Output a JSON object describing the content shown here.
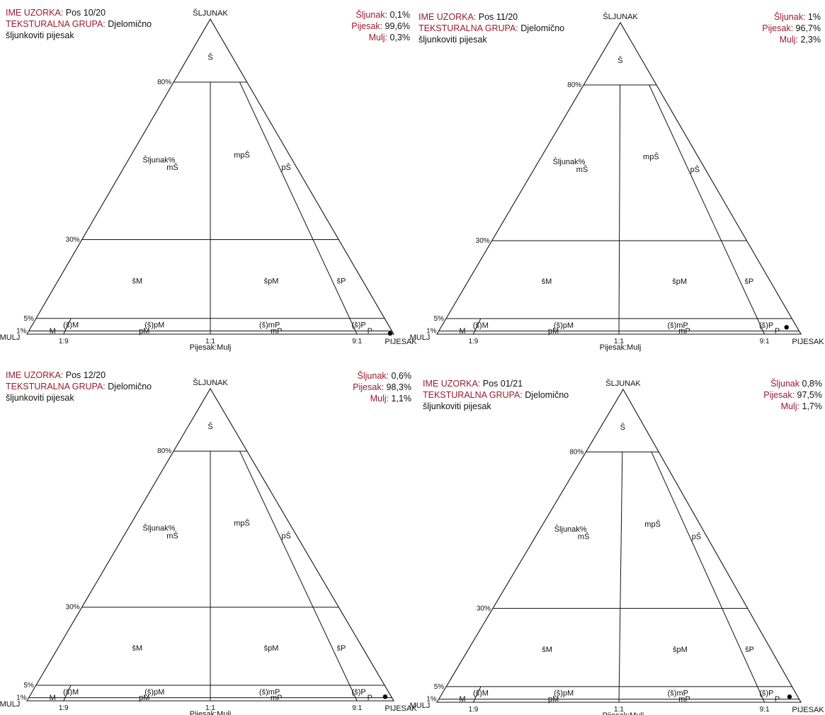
{
  "labels": {
    "top_vertex": "ŠLJUNAK",
    "left_vertex": "MULJ",
    "right_vertex": "PIJESAK",
    "axis_left": "Šljunak%",
    "axis_bottom": "Pijesak:Mulj",
    "ratio_ticks": [
      "1:9",
      "1:1",
      "9:1"
    ],
    "percent_ticks": [
      "80%",
      "30%",
      "5%",
      "1%"
    ],
    "fields": {
      "S": "Š",
      "mS": "mŠ",
      "mpS": "mpŠ",
      "pS": "pŠ",
      "sM": "šM",
      "spM": "špM",
      "sP": "šP",
      "s_M": "(š)M",
      "s_pM": "(š)pM",
      "s_mP": "(š)mP",
      "s_P": "(š)P",
      "M": "M",
      "pM": "pM",
      "mP": "mP",
      "P": "P"
    }
  },
  "panels": [
    {
      "sample_key": "IME UZORKA:",
      "sample_value": "Pos 10/20",
      "group_key": "TEKSTURALNA GRUPA:",
      "group_value": "Djelomično šljunkoviti pijesak",
      "composition": [
        {
          "key": "Šljunak:",
          "value": "0,1%"
        },
        {
          "key": "Pijesak:",
          "value": "99,6%"
        },
        {
          "key": "Mulj:",
          "value": "0,3%"
        }
      ],
      "point": {
        "sljunak": 0.1,
        "pijesak": 99.6,
        "mulj": 0.3
      }
    },
    {
      "sample_key": "IME UZORKA:",
      "sample_value": "Pos 11/20",
      "group_key": "TEKSTURALNA GRUPA:",
      "group_value": "Djelomično šljunkoviti pijesak",
      "composition": [
        {
          "key": "Šljunak:",
          "value": "1%"
        },
        {
          "key": "Pijesak:",
          "value": "96,7%"
        },
        {
          "key": "Mulj:",
          "value": "2,3%"
        }
      ],
      "point": {
        "sljunak": 1,
        "pijesak": 96.7,
        "mulj": 2.3
      }
    },
    {
      "sample_key": "IME UZORKA:",
      "sample_value": "Pos 12/20",
      "group_key": "TEKSTURALNA GRUPA:",
      "group_value": "Djelomično šljunkoviti pijesak",
      "composition": [
        {
          "key": "Šljunak:",
          "value": "0,6%"
        },
        {
          "key": "Pijesak:",
          "value": "98,3%"
        },
        {
          "key": "Mulj:",
          "value": "1,1%"
        }
      ],
      "point": {
        "sljunak": 0.6,
        "pijesak": 98.3,
        "mulj": 1.1
      }
    },
    {
      "sample_key": "IME UZORKA:",
      "sample_value": "Pos 01/21",
      "group_key": "TEKSTURALNA GRUPA:",
      "group_value": "Djelomično šljunkoviti pijesak",
      "composition": [
        {
          "key": "Šljunak",
          "value": "0,8%"
        },
        {
          "key": "Pijesak:",
          "value": "97,5%"
        },
        {
          "key": "Mulj:",
          "value": "1,7%"
        }
      ],
      "point": {
        "sljunak": 0.8,
        "pijesak": 97.5,
        "mulj": 1.7
      }
    }
  ]
}
